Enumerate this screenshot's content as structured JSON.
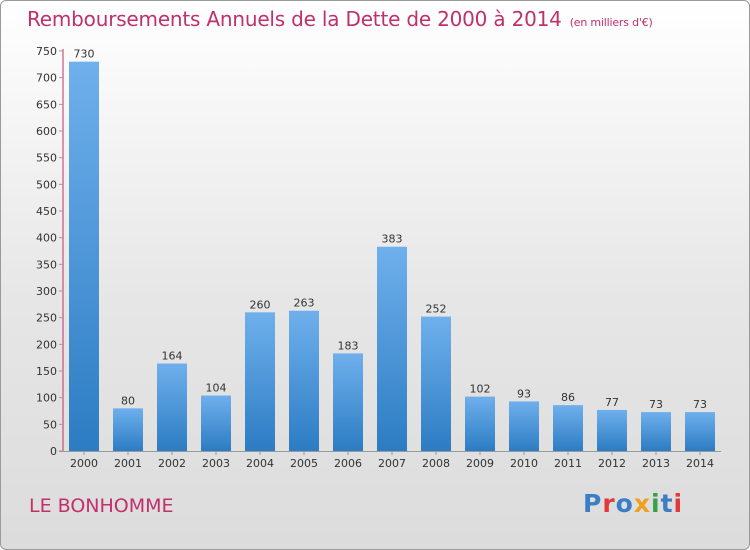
{
  "title": "Remboursements Annuels de la Dette de 2000 à 2014",
  "unit_note": "(en milliers d'€)",
  "place": "LE BONHOMME",
  "logo": {
    "text": "Proxiti",
    "colors": [
      "#3a7ec6",
      "#e23a3a",
      "#3a7ec6",
      "#f0a020",
      "#3aa048",
      "#3a7ec6",
      "#e23a3a"
    ]
  },
  "colors": {
    "bar_top": "#6fb0ec",
    "bar_bottom": "#2c7cc3",
    "title": "#c0306a",
    "axis": "#c0306a"
  },
  "chart_data": {
    "type": "bar",
    "categories": [
      "2000",
      "2001",
      "2002",
      "2003",
      "2004",
      "2005",
      "2006",
      "2007",
      "2008",
      "2009",
      "2010",
      "2011",
      "2012",
      "2013",
      "2014"
    ],
    "values": [
      730,
      80,
      164,
      104,
      260,
      263,
      183,
      383,
      252,
      102,
      93,
      86,
      77,
      73,
      73
    ],
    "ylim": [
      0,
      750
    ],
    "yticks": [
      0,
      50,
      100,
      150,
      200,
      250,
      300,
      350,
      400,
      450,
      500,
      550,
      600,
      650,
      700,
      750
    ],
    "grid": false,
    "title": "Remboursements Annuels de la Dette de 2000 à 2014",
    "xlabel": "",
    "ylabel": ""
  }
}
